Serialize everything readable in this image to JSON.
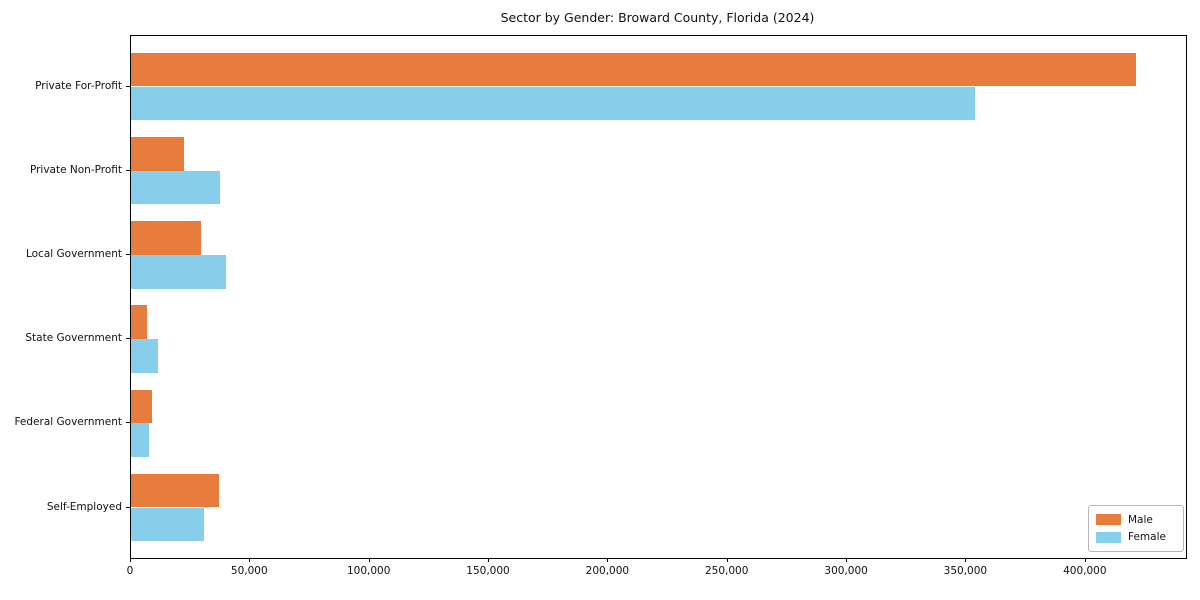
{
  "chart_data": {
    "type": "bar",
    "orientation": "horizontal",
    "title": "Sector by Gender: Broward County, Florida (2024)",
    "categories": [
      "Private For-Profit",
      "Private Non-Profit",
      "Local Government",
      "State Government",
      "Federal Government",
      "Self-Employed"
    ],
    "series": [
      {
        "name": "Male",
        "color": "#e87c3d",
        "values": [
          421000,
          22300,
          29300,
          6700,
          8700,
          37000
        ]
      },
      {
        "name": "Female",
        "color": "#87ceeb",
        "values": [
          353700,
          37300,
          39800,
          11200,
          7700,
          30500
        ]
      }
    ],
    "xlabel": "",
    "ylabel": "",
    "xlim": [
      0,
      442000
    ],
    "xticks": [
      0,
      50000,
      100000,
      150000,
      200000,
      250000,
      300000,
      350000,
      400000
    ],
    "xtick_labels": [
      "0",
      "50,000",
      "100,000",
      "150,000",
      "200,000",
      "250,000",
      "300,000",
      "350,000",
      "400,000"
    ],
    "grid": false,
    "legend": {
      "position": "lower right",
      "entries": [
        "Male",
        "Female"
      ]
    }
  }
}
